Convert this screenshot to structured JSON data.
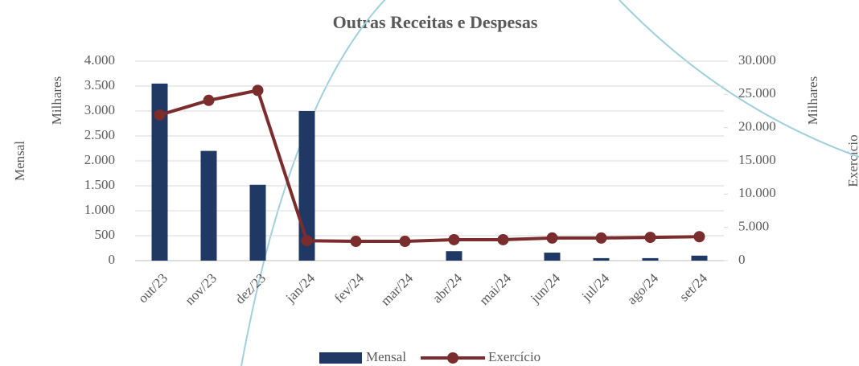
{
  "chart_data": {
    "type": "bar-line",
    "title": "Outras Receitas e Despesas",
    "y_label": "Mensal",
    "y_unit_label": "Milhares",
    "y2_label": "Exercício",
    "y2_unit_label": "Milhares",
    "categories": [
      "out/23",
      "nov/23",
      "dez/23",
      "jan/24",
      "fev/24",
      "mar/24",
      "abr/24",
      "mai/24",
      "jun/24",
      "jul/24",
      "ago/24",
      "set/24"
    ],
    "series": [
      {
        "name": "Mensal",
        "type": "bar",
        "color": "#1f3864",
        "values": [
          3550,
          2200,
          1520,
          3000,
          0,
          0,
          190,
          0,
          160,
          50,
          50,
          100
        ]
      },
      {
        "name": "Exercício",
        "type": "line",
        "axis": "y2",
        "color": "#7b2c2c",
        "values": [
          21900,
          24100,
          25600,
          3000,
          2900,
          2900,
          3150,
          3150,
          3400,
          3400,
          3500,
          3600
        ]
      }
    ],
    "ylim": [
      0,
      4000
    ],
    "yticks": [
      0,
      500,
      {
        "value": 1000,
        "label": "1.000"
      },
      {
        "value": 1500,
        "label": "1.500"
      },
      {
        "value": 2000,
        "label": "2.000"
      },
      {
        "value": 2500,
        "label": "2.500"
      },
      {
        "value": 3000,
        "label": "3.000"
      },
      {
        "value": 3500,
        "label": "3.500"
      },
      {
        "value": 4000,
        "label": "4.000"
      }
    ],
    "y2lim": [
      0,
      30000
    ],
    "y2ticks": [
      0,
      {
        "value": 5000,
        "label": "5.000"
      },
      {
        "value": 10000,
        "label": "10.000"
      },
      {
        "value": 15000,
        "label": "15.000"
      },
      {
        "value": 20000,
        "label": "20.000"
      },
      {
        "value": 25000,
        "label": "25.000"
      },
      {
        "value": 30000,
        "label": "30.000"
      }
    ],
    "grid": true,
    "legend": "bottom"
  }
}
